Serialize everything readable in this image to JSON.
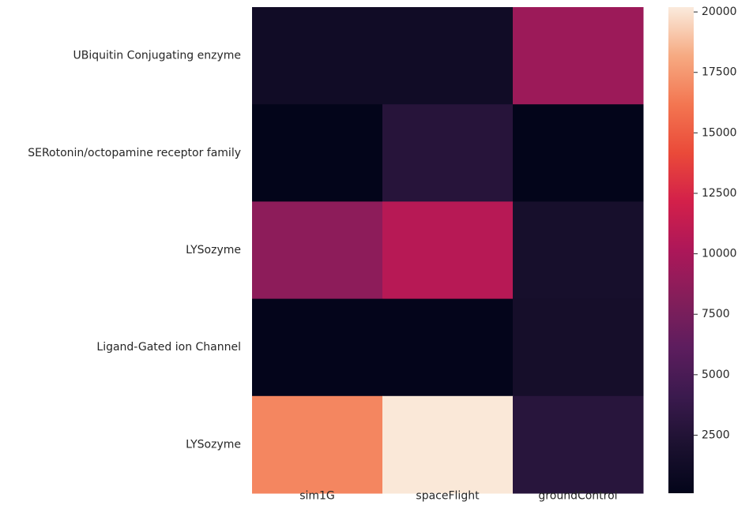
{
  "chart_data": {
    "type": "heatmap",
    "title": "",
    "xlabel": "",
    "ylabel": "",
    "columns": [
      "sim1G",
      "spaceFlight",
      "groundControl"
    ],
    "rows": [
      "UBiquitin Conjugating enzyme",
      "SERotonin/octopamine receptor family",
      "LYSozyme",
      "Ligand-Gated ion Channel",
      "LYSozyme"
    ],
    "values": [
      [
        1200,
        1200,
        9300
      ],
      [
        100,
        2800,
        100
      ],
      [
        8600,
        10700,
        1700
      ],
      [
        150,
        150,
        1600
      ],
      [
        16800,
        20100,
        2900
      ]
    ],
    "colorbar": {
      "min": 100,
      "max": 20200,
      "ticks": [
        2500,
        5000,
        7500,
        10000,
        12500,
        15000,
        17500,
        20000
      ],
      "tick_labels": [
        "2500",
        "5000",
        "7500",
        "10000",
        "12500",
        "15000",
        "17500",
        "20000"
      ],
      "colormap": "rocket"
    }
  }
}
